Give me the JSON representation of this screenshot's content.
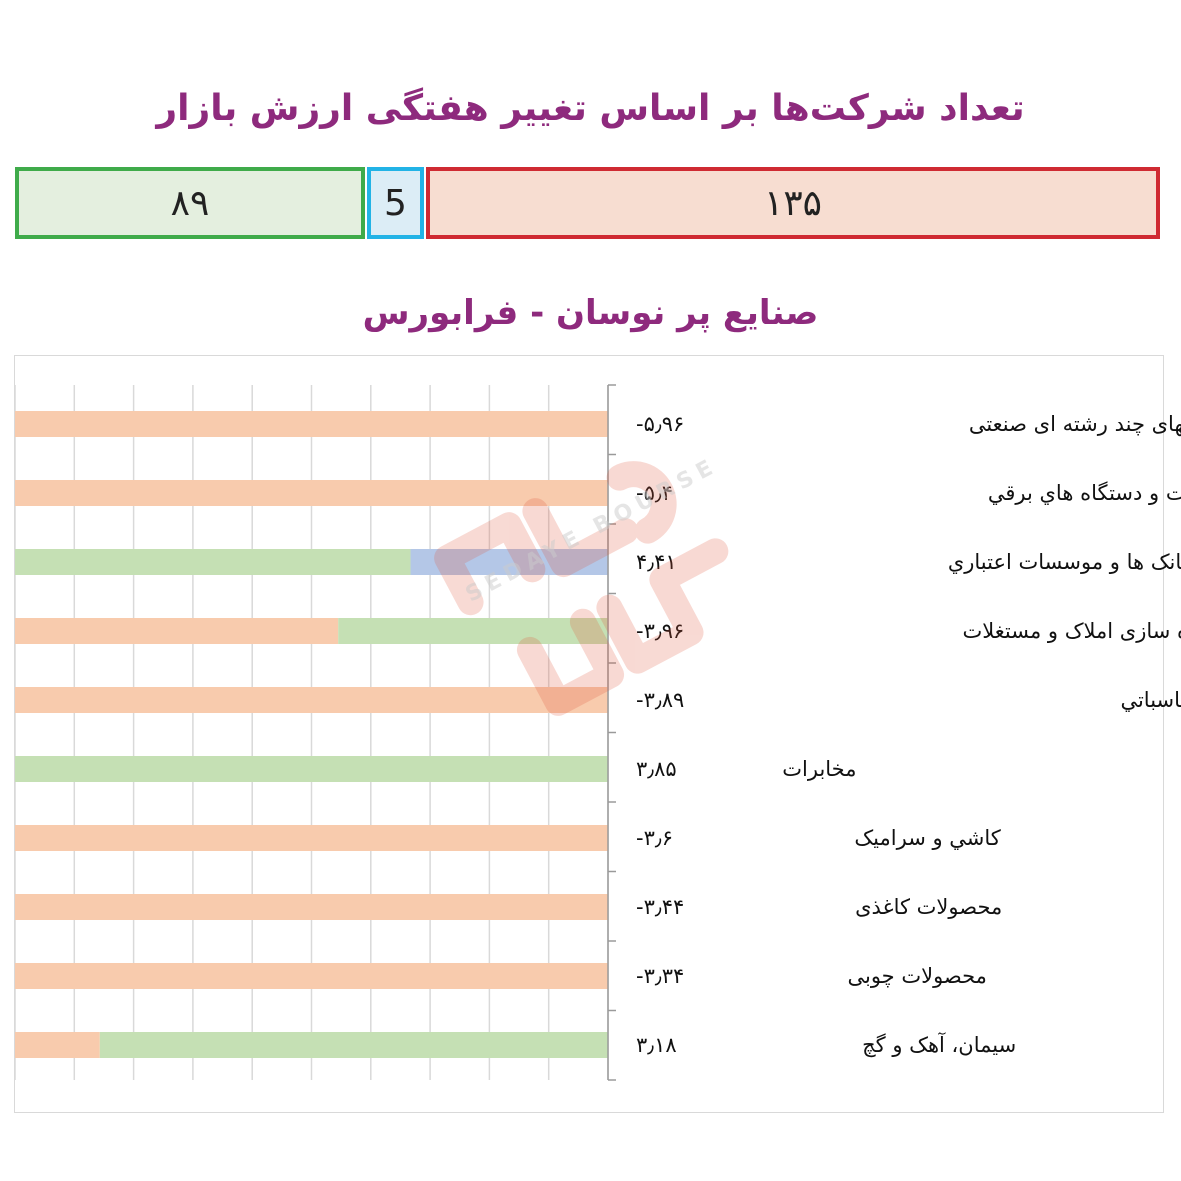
{
  "header": {
    "title": "تعداد شرکت‌ها بر اساس تغییر هفتگی ارزش بازار",
    "section_title": "صنایع پر نوسان - فرابورس"
  },
  "summary": {
    "positive_count": "۸۹",
    "neutral_count": "5",
    "negative_count": "۱۳۵",
    "colors": {
      "positive": "#3fab4a",
      "neutral": "#22b3e6",
      "negative": "#cf2a32"
    }
  },
  "chart_data": {
    "type": "bar",
    "orientation": "horizontal",
    "categories": [
      "شرکتهای چند رشته ای صنعتی",
      "ماشین آلات و دستگاه هاي برقي",
      "بانک ها و موسسات اعتباري",
      "انبوه سازی املاک و مستغلات",
      "تولید ماشين آلات اداري، حسابداري و محاسباتي",
      "مخابرات",
      "کاشي و سرامیک",
      "محصولات کاغذی",
      "محصولات چوبی",
      "سیمان، آهک و گچ"
    ],
    "value_labels": [
      "-۵٫۹۶",
      "-۵٫۴",
      "۴٫۴۱",
      "-۳٫۹۶",
      "-۳٫۸۹",
      "۳٫۸۵",
      "-۳٫۶",
      "-۳٫۴۴",
      "-۳٫۳۴",
      "۳٫۱۸"
    ],
    "values": [
      -5.96,
      -5.4,
      4.41,
      -3.96,
      -3.89,
      3.85,
      -3.6,
      -3.44,
      -3.34,
      3.18
    ],
    "series": [
      {
        "name": "",
        "color": "#f8cbad",
        "values": [
          1.0,
          1.0,
          0.0,
          0.545,
          1.0,
          0.0,
          1.0,
          1.0,
          1.0,
          0.143
        ]
      },
      {
        "name": "",
        "color": "#c5e0b4",
        "values": [
          0.0,
          0.0,
          0.667,
          0.455,
          0.0,
          1.0,
          0.0,
          0.0,
          0.0,
          0.857
        ]
      },
      {
        "name": "",
        "color": "#b4c7e7",
        "values": [
          0.0,
          0.0,
          0.333,
          0.0,
          0.0,
          0.0,
          0.0,
          0.0,
          0.0,
          0.0
        ]
      }
    ],
    "xlim": [
      0,
      1
    ],
    "grid": true,
    "legend": "none"
  },
  "watermark": {
    "text": "SEDAYE BOURSE"
  }
}
